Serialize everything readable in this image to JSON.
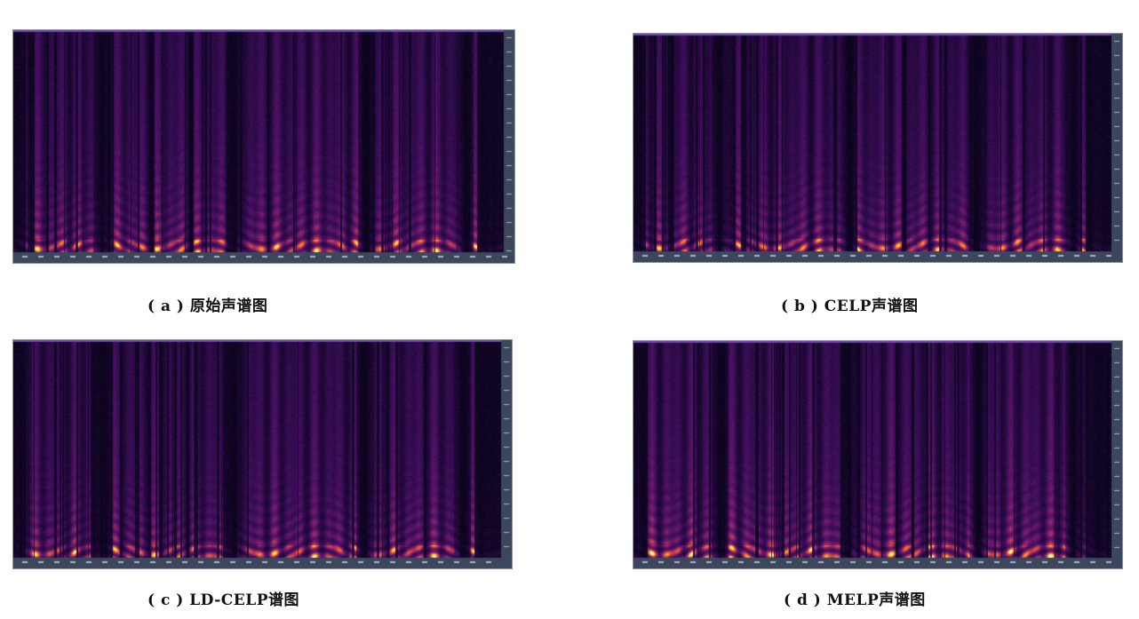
{
  "figure": {
    "panels": [
      {
        "id": "a",
        "caption": "( a ) 原始声谱图",
        "colormap": "inferno"
      },
      {
        "id": "b",
        "caption": "( b ) CELP声谱图",
        "colormap": "inferno"
      },
      {
        "id": "c",
        "caption": "( c ) LD-CELP谱图",
        "colormap": "inferno"
      },
      {
        "id": "d",
        "caption": "( d ) MELP声谱图",
        "colormap": "inferno"
      }
    ]
  }
}
